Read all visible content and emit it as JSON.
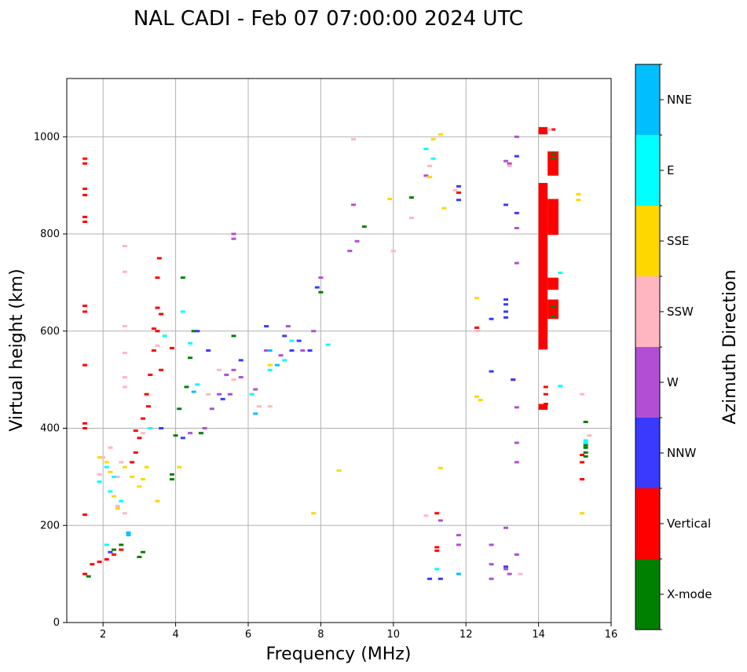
{
  "chart_data": {
    "type": "scatter",
    "title": "NAL CADI - Feb 07 07:00:00 2024 UTC",
    "xlabel": "Frequency (MHz)",
    "ylabel": "Virtual height (km)",
    "xlim": [
      1,
      16
    ],
    "ylim": [
      0,
      1120
    ],
    "xticks": [
      2,
      4,
      6,
      8,
      10,
      12,
      14,
      16
    ],
    "yticks": [
      0,
      200,
      400,
      600,
      800,
      1000
    ],
    "grid": true,
    "colorbar": {
      "label": "Azimuth Direction",
      "categories": [
        {
          "name": "X-mode",
          "color": "#008000"
        },
        {
          "name": "Vertical",
          "color": "#ff0000"
        },
        {
          "name": "NNW",
          "color": "#3a3aff"
        },
        {
          "name": "W",
          "color": "#b04fd4"
        },
        {
          "name": "SSW",
          "color": "#ffb6c1"
        },
        {
          "name": "SSE",
          "color": "#ffd700"
        },
        {
          "name": "E",
          "color": "#00ffff"
        },
        {
          "name": "NNE",
          "color": "#00bfff"
        }
      ]
    },
    "series": [
      {
        "name": "Vertical",
        "points": [
          [
            1.5,
            955
          ],
          [
            1.5,
            945
          ],
          [
            1.5,
            893
          ],
          [
            1.5,
            880
          ],
          [
            1.5,
            835
          ],
          [
            1.5,
            825
          ],
          [
            1.5,
            652
          ],
          [
            1.5,
            640
          ],
          [
            1.5,
            530
          ],
          [
            1.5,
            410
          ],
          [
            1.5,
            400
          ],
          [
            1.5,
            222
          ],
          [
            1.5,
            100
          ],
          [
            1.7,
            120
          ],
          [
            1.9,
            125
          ],
          [
            2.1,
            130
          ],
          [
            2.3,
            140
          ],
          [
            2.5,
            150
          ],
          [
            2.8,
            330
          ],
          [
            2.9,
            350
          ],
          [
            3.0,
            380
          ],
          [
            3.1,
            420
          ],
          [
            3.2,
            470
          ],
          [
            3.3,
            510
          ],
          [
            3.4,
            560
          ],
          [
            3.5,
            600
          ],
          [
            3.5,
            648
          ],
          [
            3.5,
            710
          ],
          [
            3.55,
            750
          ],
          [
            3.6,
            520
          ],
          [
            3.9,
            565
          ],
          [
            2.9,
            395
          ],
          [
            3.25,
            445
          ],
          [
            3.4,
            605
          ],
          [
            3.6,
            635
          ],
          [
            11.2,
            225
          ],
          [
            11.2,
            155
          ],
          [
            11.2,
            148
          ],
          [
            11.8,
            885
          ],
          [
            12.3,
            607
          ],
          [
            13.3,
            500
          ],
          [
            14.4,
            1015
          ],
          [
            14.2,
            450
          ],
          [
            14.2,
            485
          ],
          [
            14.2,
            470
          ],
          [
            15.2,
            330
          ],
          [
            15.2,
            345
          ],
          [
            15.2,
            295
          ]
        ]
      },
      {
        "name": "Vertical band",
        "bands": [
          {
            "x": [
              14.0,
              14.25
            ],
            "y": [
              562,
              905
            ]
          },
          {
            "x": [
              14.25,
              14.55
            ],
            "y": [
              798,
              872
            ]
          },
          {
            "x": [
              14.25,
              14.55
            ],
            "y": [
              685,
              710
            ]
          },
          {
            "x": [
              14.25,
              14.55
            ],
            "y": [
              625,
              665
            ]
          },
          {
            "x": [
              14.25,
              14.55
            ],
            "y": [
              920,
              970
            ]
          },
          {
            "x": [
              14.0,
              14.25
            ],
            "y": [
              438,
              450
            ]
          },
          {
            "x": [
              14.0,
              14.25
            ],
            "y": [
              1005,
              1020
            ]
          }
        ]
      },
      {
        "name": "X-mode",
        "points": [
          [
            1.6,
            95
          ],
          [
            2.3,
            150
          ],
          [
            2.5,
            160
          ],
          [
            3.0,
            135
          ],
          [
            3.1,
            145
          ],
          [
            3.9,
            305
          ],
          [
            3.9,
            295
          ],
          [
            4.0,
            385
          ],
          [
            4.1,
            440
          ],
          [
            4.2,
            710
          ],
          [
            4.3,
            485
          ],
          [
            4.4,
            545
          ],
          [
            4.5,
            600
          ],
          [
            4.7,
            390
          ],
          [
            5.6,
            590
          ],
          [
            8.0,
            680
          ],
          [
            9.2,
            815
          ],
          [
            10.5,
            875
          ],
          [
            14.4,
            965
          ],
          [
            14.4,
            955
          ],
          [
            14.4,
            630
          ],
          [
            14.4,
            650
          ],
          [
            15.3,
            413
          ],
          [
            15.3,
            365
          ],
          [
            15.3,
            360
          ],
          [
            15.3,
            350
          ],
          [
            15.3,
            342
          ]
        ]
      },
      {
        "name": "NNW",
        "points": [
          [
            2.2,
            145
          ],
          [
            3.6,
            400
          ],
          [
            4.2,
            380
          ],
          [
            4.6,
            600
          ],
          [
            4.9,
            560
          ],
          [
            5.3,
            460
          ],
          [
            5.8,
            540
          ],
          [
            6.5,
            610
          ],
          [
            7.0,
            590
          ],
          [
            7.2,
            560
          ],
          [
            7.4,
            580
          ],
          [
            7.7,
            560
          ],
          [
            7.9,
            690
          ],
          [
            11.8,
            898
          ],
          [
            11.8,
            870
          ],
          [
            12.7,
            625
          ],
          [
            12.7,
            517
          ],
          [
            13.1,
            628
          ],
          [
            13.1,
            640
          ],
          [
            13.1,
            655
          ],
          [
            13.1,
            665
          ],
          [
            13.1,
            860
          ],
          [
            13.4,
            960
          ],
          [
            13.4,
            843
          ],
          [
            13.3,
            500
          ],
          [
            13.1,
            115
          ],
          [
            11.0,
            90
          ],
          [
            11.3,
            90
          ]
        ]
      },
      {
        "name": "W",
        "points": [
          [
            4.4,
            390
          ],
          [
            4.8,
            400
          ],
          [
            5.0,
            440
          ],
          [
            5.2,
            470
          ],
          [
            5.4,
            510
          ],
          [
            5.5,
            470
          ],
          [
            5.6,
            520
          ],
          [
            5.8,
            505
          ],
          [
            5.6,
            800
          ],
          [
            5.6,
            790
          ],
          [
            6.2,
            480
          ],
          [
            6.5,
            560
          ],
          [
            6.9,
            550
          ],
          [
            7.1,
            610
          ],
          [
            7.5,
            560
          ],
          [
            7.8,
            600
          ],
          [
            8.0,
            710
          ],
          [
            8.8,
            765
          ],
          [
            9.0,
            785
          ],
          [
            8.9,
            860
          ],
          [
            10.9,
            920
          ],
          [
            13.1,
            950
          ],
          [
            13.2,
            945
          ],
          [
            13.4,
            1000
          ],
          [
            13.4,
            812
          ],
          [
            13.4,
            740
          ],
          [
            13.4,
            443
          ],
          [
            13.4,
            370
          ],
          [
            13.4,
            330
          ],
          [
            13.1,
            195
          ],
          [
            12.7,
            160
          ],
          [
            12.7,
            120
          ],
          [
            11.8,
            180
          ],
          [
            11.8,
            160
          ],
          [
            11.3,
            210
          ],
          [
            13.1,
            110
          ],
          [
            13.2,
            100
          ],
          [
            12.7,
            90
          ],
          [
            13.4,
            140
          ]
        ]
      },
      {
        "name": "SSW",
        "points": [
          [
            1.9,
            305
          ],
          [
            2.0,
            340
          ],
          [
            2.2,
            360
          ],
          [
            2.4,
            300
          ],
          [
            2.5,
            330
          ],
          [
            2.6,
            775
          ],
          [
            2.6,
            722
          ],
          [
            2.6,
            610
          ],
          [
            2.6,
            555
          ],
          [
            2.6,
            505
          ],
          [
            2.6,
            485
          ],
          [
            2.4,
            240
          ],
          [
            2.6,
            225
          ],
          [
            3.1,
            390
          ],
          [
            3.5,
            570
          ],
          [
            4.9,
            470
          ],
          [
            5.2,
            520
          ],
          [
            5.6,
            500
          ],
          [
            6.3,
            445
          ],
          [
            6.6,
            445
          ],
          [
            8.9,
            995
          ],
          [
            10.0,
            765
          ],
          [
            10.5,
            833
          ],
          [
            11.0,
            940
          ],
          [
            11.7,
            890
          ],
          [
            12.3,
            600
          ],
          [
            13.2,
            940
          ],
          [
            13.5,
            100
          ],
          [
            14.3,
            1015
          ],
          [
            15.4,
            385
          ],
          [
            15.2,
            470
          ],
          [
            10.9,
            220
          ]
        ]
      },
      {
        "name": "SSE",
        "points": [
          [
            1.9,
            340
          ],
          [
            2.1,
            330
          ],
          [
            2.2,
            310
          ],
          [
            2.3,
            260
          ],
          [
            2.4,
            235
          ],
          [
            2.6,
            320
          ],
          [
            2.8,
            300
          ],
          [
            3.0,
            280
          ],
          [
            3.1,
            295
          ],
          [
            3.2,
            320
          ],
          [
            3.5,
            250
          ],
          [
            4.1,
            320
          ],
          [
            6.6,
            530
          ],
          [
            8.5,
            313
          ],
          [
            9.9,
            872
          ],
          [
            11.0,
            917
          ],
          [
            11.1,
            995
          ],
          [
            11.3,
            1005
          ],
          [
            11.3,
            318
          ],
          [
            11.4,
            853
          ],
          [
            12.3,
            668
          ],
          [
            12.3,
            465
          ],
          [
            12.4,
            458
          ],
          [
            15.1,
            882
          ],
          [
            15.1,
            870
          ],
          [
            15.2,
            225
          ],
          [
            7.8,
            225
          ]
        ]
      },
      {
        "name": "E",
        "points": [
          [
            1.9,
            290
          ],
          [
            2.1,
            320
          ],
          [
            2.2,
            270
          ],
          [
            2.3,
            300
          ],
          [
            2.5,
            250
          ],
          [
            2.1,
            160
          ],
          [
            3.3,
            400
          ],
          [
            3.7,
            590
          ],
          [
            4.2,
            640
          ],
          [
            4.4,
            575
          ],
          [
            4.6,
            490
          ],
          [
            6.1,
            470
          ],
          [
            6.6,
            520
          ],
          [
            7.0,
            540
          ],
          [
            7.2,
            580
          ],
          [
            8.2,
            572
          ],
          [
            10.9,
            975
          ],
          [
            11.1,
            955
          ],
          [
            11.2,
            110
          ],
          [
            14.6,
            720
          ],
          [
            14.6,
            487
          ],
          [
            15.3,
            375
          ],
          [
            15.3,
            370
          ]
        ]
      },
      {
        "name": "NNE",
        "points": [
          [
            2.7,
            180
          ],
          [
            2.7,
            185
          ],
          [
            4.5,
            475
          ],
          [
            6.2,
            430
          ],
          [
            6.6,
            560
          ],
          [
            6.8,
            530
          ],
          [
            11.8,
            100
          ]
        ]
      }
    ]
  }
}
